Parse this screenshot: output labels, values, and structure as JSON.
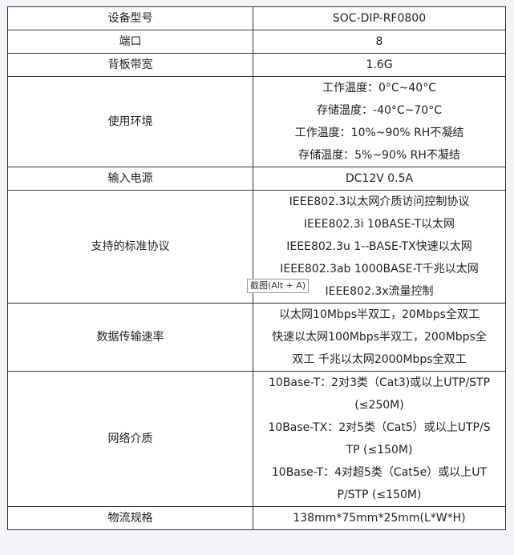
{
  "table": {
    "rows": [
      [
        "设备型号",
        [
          "SOC-DIP-RF0800"
        ]
      ],
      [
        "端口",
        [
          "8"
        ]
      ],
      [
        "背板带宽",
        [
          "1.6G"
        ]
      ],
      [
        "使用环境",
        [
          "工作温度：0°C~40°C",
          "存储温度：-40°C~70°C",
          "工作温度：10%~90% RH不凝结",
          "存储温度：5%~90% RH不凝结"
        ]
      ],
      [
        "输入电源",
        [
          "DC12V 0.5A"
        ]
      ],
      [
        "支持的标准协议",
        [
          "IEEE802.3以太网介质访问控制协议",
          "IEEE802.3i 10BASE-T以太网",
          "IEEE802.3u 1--BASE-TX快速以太网",
          "IEEE802.3ab 1000BASE-T千兆以太网",
          "IEEE802.3x流量控制"
        ]
      ],
      [
        "数据传输速率",
        [
          "以太网10Mbps半双工，20Mbps全双工",
          "快速以太网100Mbps半双工，200Mbps全",
          "双工 千兆以太网2000Mbps全双工"
        ]
      ],
      [
        "网络介质",
        [
          "10Base-T：2对3类（Cat3)或以上UTP/STP",
          "(≤250M)",
          "10Base-TX：2对5类（Cat5）或以上UTP/S",
          "TP (≤150M)",
          "10Base-T：4对超5类（Cat5e）或以上UT",
          "P/STP (≤150M)"
        ]
      ],
      [
        "物流规格",
        [
          "138mm*75mm*25mm(L*W*H)"
        ]
      ]
    ]
  },
  "tooltip": "截图(Alt + A)"
}
